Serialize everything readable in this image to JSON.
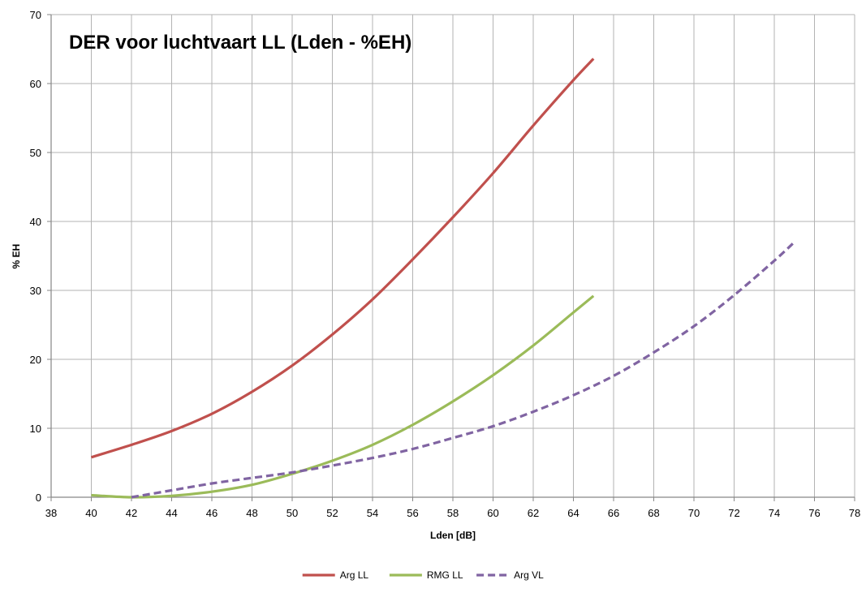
{
  "chart_data": {
    "type": "line",
    "title": "DER voor luchtvaart LL (Lden - %EH)",
    "xlabel": "Lden [dB]",
    "ylabel": "% EH",
    "xlim": [
      38,
      78
    ],
    "ylim": [
      0,
      70
    ],
    "x_ticks": [
      38,
      40,
      42,
      44,
      46,
      48,
      50,
      52,
      54,
      56,
      58,
      60,
      62,
      64,
      66,
      68,
      70,
      72,
      74,
      76,
      78
    ],
    "y_ticks": [
      0,
      10,
      20,
      30,
      40,
      50,
      60,
      70
    ],
    "grid": true,
    "legend_position": "bottom",
    "series": [
      {
        "name": "Arg LL",
        "color": "#c0504d",
        "dash": "solid",
        "points": [
          [
            40,
            5.8
          ],
          [
            42,
            7.6
          ],
          [
            44,
            9.6
          ],
          [
            46,
            12.1
          ],
          [
            48,
            15.3
          ],
          [
            50,
            19.1
          ],
          [
            52,
            23.6
          ],
          [
            54,
            28.7
          ],
          [
            56,
            34.5
          ],
          [
            58,
            40.6
          ],
          [
            60,
            47.0
          ],
          [
            62,
            53.9
          ],
          [
            64,
            60.5
          ],
          [
            65,
            63.6
          ]
        ]
      },
      {
        "name": "RMG LL",
        "color": "#9bbb59",
        "dash": "solid",
        "points": [
          [
            40,
            0.3
          ],
          [
            42,
            0.0
          ],
          [
            44,
            0.2
          ],
          [
            46,
            0.8
          ],
          [
            48,
            1.8
          ],
          [
            50,
            3.4
          ],
          [
            52,
            5.3
          ],
          [
            54,
            7.6
          ],
          [
            56,
            10.5
          ],
          [
            58,
            13.9
          ],
          [
            60,
            17.7
          ],
          [
            62,
            22.0
          ],
          [
            64,
            26.8
          ],
          [
            65,
            29.2
          ]
        ]
      },
      {
        "name": "Arg VL",
        "color": "#8064a2",
        "dash": "dashed",
        "points": [
          [
            42,
            0.0
          ],
          [
            44,
            1.0
          ],
          [
            46,
            2.0
          ],
          [
            48,
            2.8
          ],
          [
            50,
            3.6
          ],
          [
            52,
            4.6
          ],
          [
            54,
            5.7
          ],
          [
            56,
            7.0
          ],
          [
            58,
            8.6
          ],
          [
            60,
            10.3
          ],
          [
            62,
            12.4
          ],
          [
            64,
            14.8
          ],
          [
            66,
            17.6
          ],
          [
            68,
            21.0
          ],
          [
            70,
            24.8
          ],
          [
            72,
            29.3
          ],
          [
            74,
            34.3
          ],
          [
            75,
            37.0
          ]
        ]
      }
    ]
  }
}
